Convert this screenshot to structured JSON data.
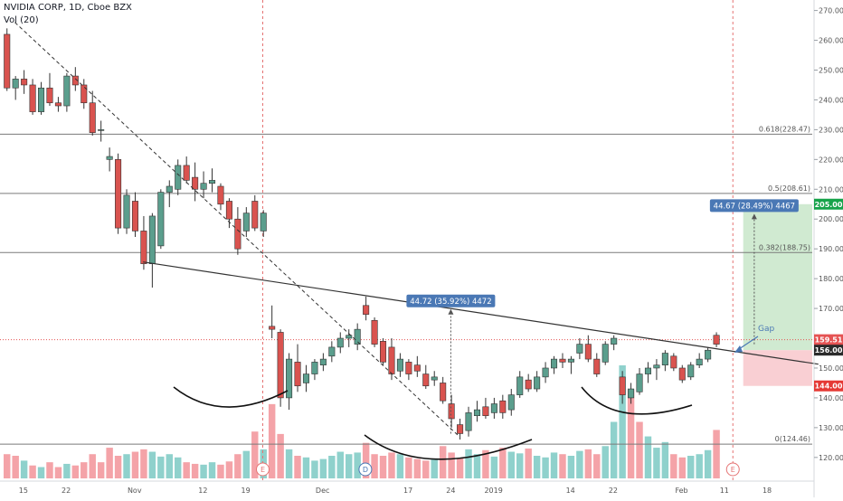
{
  "header": {
    "title": "NVIDIA CORP, 1D, Cboe BZX",
    "volume_label": "Vol (20)"
  },
  "colors": {
    "up": "#5b9e8d",
    "down": "#d9534f",
    "up_volume": "#8fd1cc",
    "down_volume": "#f4a3a8",
    "target_zone": "#c8e6c9",
    "stop_zone": "#f8c7cb",
    "measure_label": "#4a78b5",
    "target_tag": "#16a34a",
    "stop_tag": "#e53935",
    "price_tag": "#e55353",
    "level_tag": "#2b2b2b"
  },
  "chart_data": {
    "type": "candlestick",
    "title": "NVIDIA CORP, 1D, Cboe BZX",
    "y_axis": {
      "range": [
        116,
        272
      ],
      "ticks": [
        120,
        130,
        140,
        150,
        160,
        170,
        180,
        190,
        200,
        210,
        220,
        230,
        240,
        250,
        260,
        270
      ],
      "tick_labels": [
        "120.00",
        "130.00",
        "140.00",
        "150.00",
        "160.00",
        "170.00",
        "180.00",
        "190.00",
        "200.00",
        "210.00",
        "220.00",
        "230.00",
        "240.00",
        "250.00",
        "260.00",
        "270.00"
      ]
    },
    "x_axis": {
      "tick_labels": [
        "15",
        "22",
        "Nov",
        "12",
        "19",
        "Dec",
        "17",
        "24",
        "2019",
        "14",
        "22",
        "Feb",
        "11",
        "18"
      ],
      "tick_bars": [
        2,
        7,
        15,
        23,
        28,
        37,
        47,
        52,
        57,
        66,
        71,
        79,
        84,
        89
      ]
    },
    "candles": [
      {
        "o": 262,
        "h": 264,
        "l": 243,
        "c": 244
      },
      {
        "o": 244,
        "h": 248,
        "l": 240,
        "c": 247
      },
      {
        "o": 247,
        "h": 250,
        "l": 242,
        "c": 245
      },
      {
        "o": 245,
        "h": 247,
        "l": 235,
        "c": 236
      },
      {
        "o": 236,
        "h": 246,
        "l": 235,
        "c": 244
      },
      {
        "o": 244,
        "h": 249,
        "l": 238,
        "c": 239
      },
      {
        "o": 239,
        "h": 241,
        "l": 236,
        "c": 238
      },
      {
        "o": 238,
        "h": 249,
        "l": 236,
        "c": 248
      },
      {
        "o": 248,
        "h": 251,
        "l": 243,
        "c": 245
      },
      {
        "o": 245,
        "h": 247,
        "l": 237,
        "c": 239
      },
      {
        "o": 239,
        "h": 243,
        "l": 228,
        "c": 229
      },
      {
        "o": 230,
        "h": 233,
        "l": 226,
        "c": 230
      },
      {
        "o": 220,
        "h": 224,
        "l": 216,
        "c": 221
      },
      {
        "o": 220,
        "h": 222,
        "l": 195,
        "c": 197
      },
      {
        "o": 197,
        "h": 210,
        "l": 195,
        "c": 208
      },
      {
        "o": 206,
        "h": 209,
        "l": 194,
        "c": 196
      },
      {
        "o": 196,
        "h": 201,
        "l": 183,
        "c": 185
      },
      {
        "o": 185,
        "h": 202,
        "l": 177,
        "c": 201
      },
      {
        "o": 191,
        "h": 210,
        "l": 190,
        "c": 209
      },
      {
        "o": 209,
        "h": 213,
        "l": 204,
        "c": 211
      },
      {
        "o": 210,
        "h": 220,
        "l": 208,
        "c": 218
      },
      {
        "o": 218,
        "h": 221,
        "l": 212,
        "c": 213
      },
      {
        "o": 214,
        "h": 219,
        "l": 206,
        "c": 210
      },
      {
        "o": 210,
        "h": 216,
        "l": 207,
        "c": 212
      },
      {
        "o": 212,
        "h": 217,
        "l": 209,
        "c": 213
      },
      {
        "o": 211,
        "h": 212,
        "l": 203,
        "c": 205
      },
      {
        "o": 206,
        "h": 207,
        "l": 197,
        "c": 200
      },
      {
        "o": 200,
        "h": 204,
        "l": 188,
        "c": 190
      },
      {
        "o": 196,
        "h": 204,
        "l": 194,
        "c": 202
      },
      {
        "o": 206,
        "h": 208,
        "l": 196,
        "c": 197
      },
      {
        "o": 196,
        "h": 203,
        "l": 194,
        "c": 202
      },
      {
        "o": 164,
        "h": 171,
        "l": 160,
        "c": 163
      },
      {
        "o": 162,
        "h": 163,
        "l": 137,
        "c": 140
      },
      {
        "o": 140,
        "h": 155,
        "l": 136,
        "c": 153
      },
      {
        "o": 152,
        "h": 158,
        "l": 142,
        "c": 144
      },
      {
        "o": 145,
        "h": 151,
        "l": 142,
        "c": 148
      },
      {
        "o": 148,
        "h": 153,
        "l": 146,
        "c": 152
      },
      {
        "o": 151,
        "h": 155,
        "l": 149,
        "c": 153
      },
      {
        "o": 154,
        "h": 159,
        "l": 152,
        "c": 157
      },
      {
        "o": 157,
        "h": 162,
        "l": 155,
        "c": 160
      },
      {
        "o": 160,
        "h": 163,
        "l": 157,
        "c": 161
      },
      {
        "o": 158,
        "h": 165,
        "l": 156,
        "c": 163
      },
      {
        "o": 171,
        "h": 174,
        "l": 166,
        "c": 168
      },
      {
        "o": 166,
        "h": 167,
        "l": 157,
        "c": 158
      },
      {
        "o": 159,
        "h": 160,
        "l": 151,
        "c": 152
      },
      {
        "o": 157,
        "h": 160,
        "l": 146,
        "c": 148
      },
      {
        "o": 149,
        "h": 155,
        "l": 147,
        "c": 153
      },
      {
        "o": 152,
        "h": 153,
        "l": 146,
        "c": 148
      },
      {
        "o": 151,
        "h": 154,
        "l": 147,
        "c": 149
      },
      {
        "o": 148,
        "h": 151,
        "l": 143,
        "c": 144
      },
      {
        "o": 146,
        "h": 149,
        "l": 144,
        "c": 147
      },
      {
        "o": 145,
        "h": 147,
        "l": 138,
        "c": 139
      },
      {
        "o": 138,
        "h": 141,
        "l": 130,
        "c": 133
      },
      {
        "o": 131,
        "h": 133,
        "l": 126,
        "c": 128
      },
      {
        "o": 129,
        "h": 137,
        "l": 127,
        "c": 135
      },
      {
        "o": 134,
        "h": 139,
        "l": 132,
        "c": 136
      },
      {
        "o": 137,
        "h": 140,
        "l": 133,
        "c": 134
      },
      {
        "o": 135,
        "h": 140,
        "l": 133,
        "c": 138
      },
      {
        "o": 139,
        "h": 141,
        "l": 133,
        "c": 135
      },
      {
        "o": 136,
        "h": 143,
        "l": 134,
        "c": 141
      },
      {
        "o": 141,
        "h": 149,
        "l": 140,
        "c": 147
      },
      {
        "o": 146,
        "h": 148,
        "l": 142,
        "c": 143
      },
      {
        "o": 143,
        "h": 149,
        "l": 142,
        "c": 147
      },
      {
        "o": 147,
        "h": 152,
        "l": 145,
        "c": 150
      },
      {
        "o": 150,
        "h": 154,
        "l": 148,
        "c": 153
      },
      {
        "o": 153,
        "h": 155,
        "l": 150,
        "c": 152
      },
      {
        "o": 152,
        "h": 154,
        "l": 148,
        "c": 153
      },
      {
        "o": 155,
        "h": 160,
        "l": 153,
        "c": 158
      },
      {
        "o": 158,
        "h": 161,
        "l": 152,
        "c": 153
      },
      {
        "o": 153,
        "h": 155,
        "l": 147,
        "c": 148
      },
      {
        "o": 152,
        "h": 159,
        "l": 151,
        "c": 158
      },
      {
        "o": 158,
        "h": 161,
        "l": 156,
        "c": 160
      },
      {
        "o": 147,
        "h": 149,
        "l": 138,
        "c": 141
      },
      {
        "o": 140,
        "h": 145,
        "l": 138,
        "c": 143
      },
      {
        "o": 142,
        "h": 150,
        "l": 141,
        "c": 148
      },
      {
        "o": 148,
        "h": 152,
        "l": 145,
        "c": 150
      },
      {
        "o": 150,
        "h": 153,
        "l": 146,
        "c": 151
      },
      {
        "o": 151,
        "h": 156,
        "l": 149,
        "c": 155
      },
      {
        "o": 154,
        "h": 155,
        "l": 149,
        "c": 150
      },
      {
        "o": 150,
        "h": 151,
        "l": 145,
        "c": 146
      },
      {
        "o": 147,
        "h": 152,
        "l": 146,
        "c": 151
      },
      {
        "o": 151,
        "h": 155,
        "l": 150,
        "c": 153
      },
      {
        "o": 153,
        "h": 157,
        "l": 152,
        "c": 156
      },
      {
        "o": 161,
        "h": 162,
        "l": 157,
        "c": 158
      }
    ],
    "volume": [
      {
        "v": 30,
        "up": false
      },
      {
        "v": 28,
        "up": false
      },
      {
        "v": 22,
        "up": true
      },
      {
        "v": 16,
        "up": false
      },
      {
        "v": 14,
        "up": true
      },
      {
        "v": 20,
        "up": false
      },
      {
        "v": 14,
        "up": false
      },
      {
        "v": 18,
        "up": true
      },
      {
        "v": 16,
        "up": false
      },
      {
        "v": 20,
        "up": false
      },
      {
        "v": 30,
        "up": false
      },
      {
        "v": 20,
        "up": false
      },
      {
        "v": 38,
        "up": false
      },
      {
        "v": 28,
        "up": false
      },
      {
        "v": 30,
        "up": true
      },
      {
        "v": 33,
        "up": false
      },
      {
        "v": 36,
        "up": false
      },
      {
        "v": 33,
        "up": true
      },
      {
        "v": 27,
        "up": true
      },
      {
        "v": 30,
        "up": true
      },
      {
        "v": 26,
        "up": true
      },
      {
        "v": 20,
        "up": false
      },
      {
        "v": 18,
        "up": false
      },
      {
        "v": 17,
        "up": true
      },
      {
        "v": 20,
        "up": true
      },
      {
        "v": 17,
        "up": false
      },
      {
        "v": 21,
        "up": false
      },
      {
        "v": 30,
        "up": false
      },
      {
        "v": 34,
        "up": true
      },
      {
        "v": 58,
        "up": false
      },
      {
        "v": 36,
        "up": true
      },
      {
        "v": 92,
        "up": false
      },
      {
        "v": 55,
        "up": false
      },
      {
        "v": 36,
        "up": true
      },
      {
        "v": 28,
        "up": false
      },
      {
        "v": 26,
        "up": true
      },
      {
        "v": 22,
        "up": true
      },
      {
        "v": 24,
        "up": true
      },
      {
        "v": 28,
        "up": true
      },
      {
        "v": 33,
        "up": true
      },
      {
        "v": 30,
        "up": true
      },
      {
        "v": 32,
        "up": true
      },
      {
        "v": 44,
        "up": false
      },
      {
        "v": 30,
        "up": false
      },
      {
        "v": 28,
        "up": false
      },
      {
        "v": 32,
        "up": false
      },
      {
        "v": 30,
        "up": true
      },
      {
        "v": 26,
        "up": false
      },
      {
        "v": 24,
        "up": false
      },
      {
        "v": 22,
        "up": false
      },
      {
        "v": 24,
        "up": true
      },
      {
        "v": 40,
        "up": false
      },
      {
        "v": 32,
        "up": false
      },
      {
        "v": 25,
        "up": false
      },
      {
        "v": 36,
        "up": true
      },
      {
        "v": 30,
        "up": true
      },
      {
        "v": 35,
        "up": false
      },
      {
        "v": 27,
        "up": true
      },
      {
        "v": 38,
        "up": false
      },
      {
        "v": 33,
        "up": true
      },
      {
        "v": 31,
        "up": true
      },
      {
        "v": 37,
        "up": false
      },
      {
        "v": 28,
        "up": true
      },
      {
        "v": 26,
        "up": true
      },
      {
        "v": 32,
        "up": true
      },
      {
        "v": 30,
        "up": false
      },
      {
        "v": 28,
        "up": true
      },
      {
        "v": 34,
        "up": true
      },
      {
        "v": 36,
        "up": false
      },
      {
        "v": 30,
        "up": false
      },
      {
        "v": 40,
        "up": true
      },
      {
        "v": 70,
        "up": true
      },
      {
        "v": 140,
        "up": true
      },
      {
        "v": 110,
        "up": false
      },
      {
        "v": 70,
        "up": false
      },
      {
        "v": 52,
        "up": true
      },
      {
        "v": 38,
        "up": true
      },
      {
        "v": 45,
        "up": true
      },
      {
        "v": 30,
        "up": false
      },
      {
        "v": 26,
        "up": false
      },
      {
        "v": 28,
        "up": true
      },
      {
        "v": 30,
        "up": true
      },
      {
        "v": 35,
        "up": true
      },
      {
        "v": 60,
        "up": false
      }
    ],
    "horizontal_levels": [
      {
        "price": 228.47,
        "label": "0.618(228.47)"
      },
      {
        "price": 208.61,
        "label": "0.5(208.61)"
      },
      {
        "price": 188.75,
        "label": "0.382(188.75)"
      },
      {
        "price": 124.46,
        "label": "0(124.46)"
      }
    ],
    "price_tags": [
      {
        "price": 205,
        "label": "205.00",
        "kind": "target"
      },
      {
        "price": 159.51,
        "label": "159.51",
        "kind": "last"
      },
      {
        "price": 156,
        "label": "156.00",
        "kind": "level"
      },
      {
        "price": 144,
        "label": "144.00",
        "kind": "stop"
      }
    ],
    "measurements": [
      {
        "label": "44.72 (35.92%) 4472",
        "bar": 52,
        "from": 128,
        "to": 171
      },
      {
        "label": "44.67 (28.49%) 4467",
        "bar": 87.5,
        "from": 158,
        "to": 203
      }
    ],
    "trendlines": [
      {
        "from_bar": 16,
        "from_price": 185.6,
        "to_bar": 95,
        "to_price": 151.3,
        "style": "solid"
      },
      {
        "from_bar": 1,
        "from_price": 266,
        "to_bar": 53,
        "to_price": 127,
        "style": "dashed"
      }
    ],
    "earnings_markers": [
      {
        "bar": 30,
        "label": "E"
      },
      {
        "bar": 85,
        "label": "E"
      }
    ],
    "dividend_markers": [
      {
        "bar": 42,
        "label": "D"
      }
    ],
    "earnings_lines": [
      30,
      85
    ],
    "position_zone": {
      "entry": 156,
      "target": 205,
      "stop": 144,
      "from_bar": 86,
      "to_bar": 95
    },
    "annotation": "Gap"
  }
}
